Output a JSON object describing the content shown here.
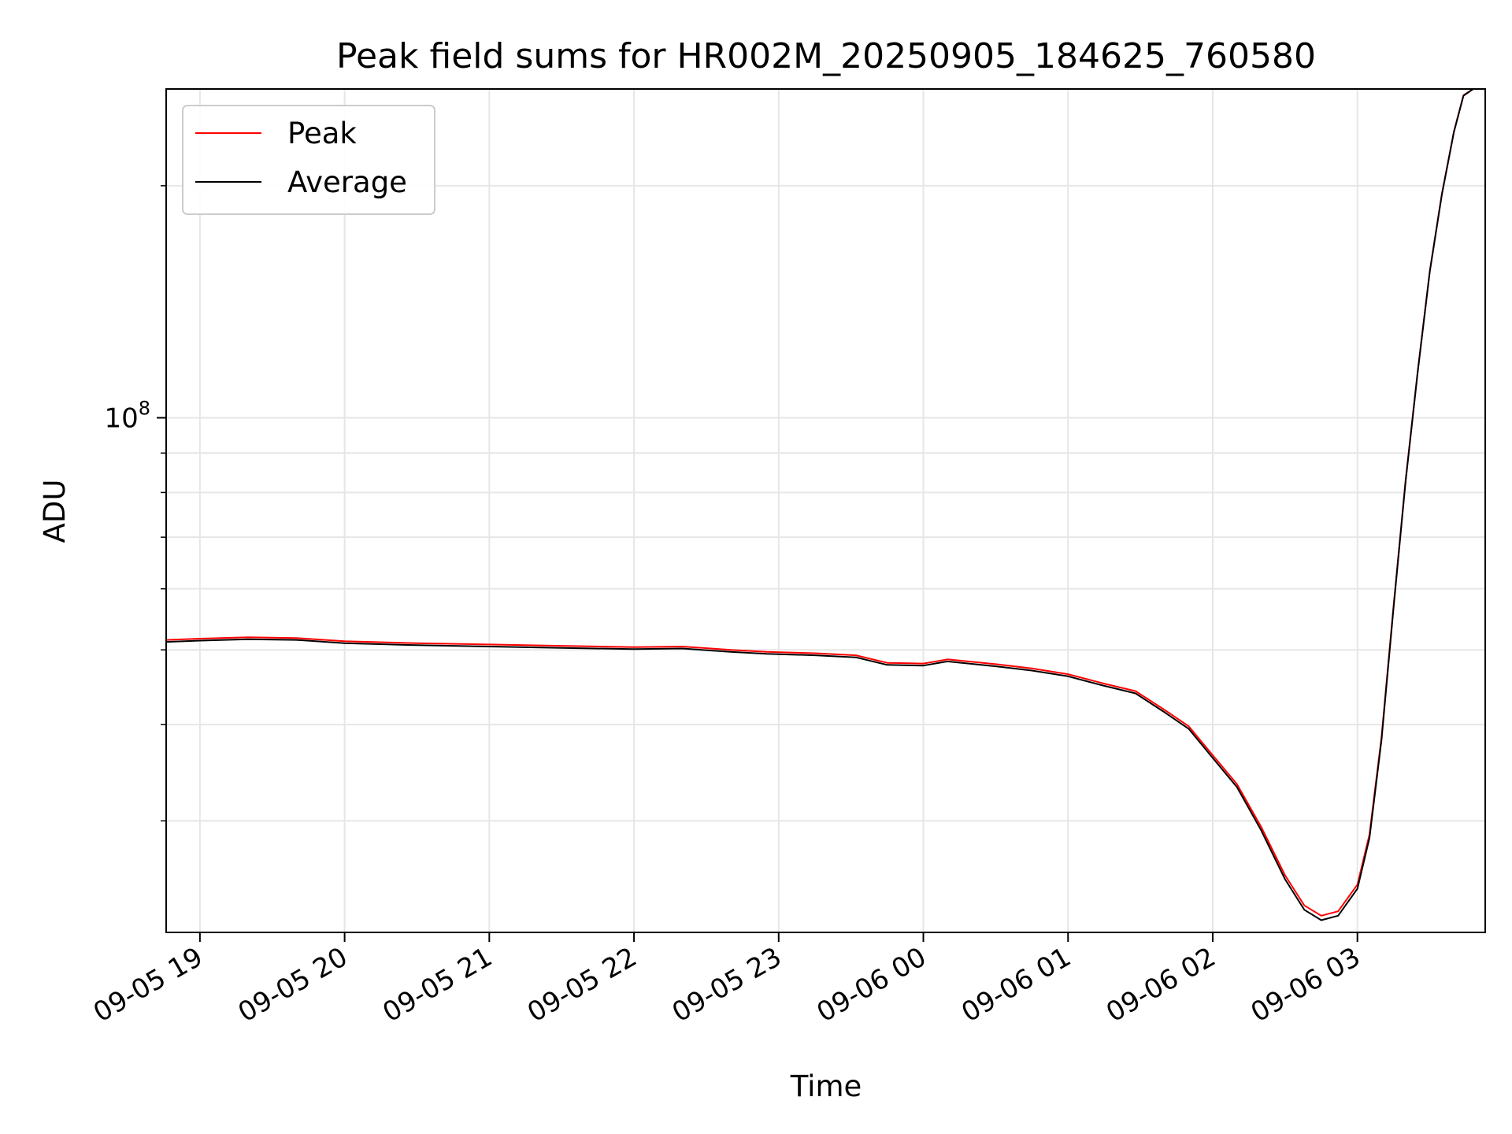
{
  "chart_data": {
    "type": "line",
    "title": "Peak field sums for HR002M_20250905_184625_760580",
    "xlabel": "Time",
    "ylabel": "ADU",
    "yscale": "log",
    "grid": true,
    "legend_position": "top-left",
    "xlim": [
      "2025-09-05 18:46",
      "2025-09-06 03:53"
    ],
    "ylim": [
      21500000,
      267000000
    ],
    "x_ticks": [
      {
        "value": "2025-09-05 19:00",
        "label": "09-05 19"
      },
      {
        "value": "2025-09-05 20:00",
        "label": "09-05 20"
      },
      {
        "value": "2025-09-05 21:00",
        "label": "09-05 21"
      },
      {
        "value": "2025-09-05 22:00",
        "label": "09-05 22"
      },
      {
        "value": "2025-09-05 23:00",
        "label": "09-05 23"
      },
      {
        "value": "2025-09-06 00:00",
        "label": "09-06 00"
      },
      {
        "value": "2025-09-06 01:00",
        "label": "09-06 01"
      },
      {
        "value": "2025-09-06 02:00",
        "label": "09-06 02"
      },
      {
        "value": "2025-09-06 03:00",
        "label": "09-06 03"
      }
    ],
    "y_major_ticks": [
      {
        "value": 100000000,
        "base": "10",
        "exponent": "8"
      }
    ],
    "y_minor_ticks": [
      30000000,
      40000000,
      50000000,
      60000000,
      70000000,
      80000000,
      90000000,
      200000000
    ],
    "x": [
      "2025-09-05 18:46",
      "2025-09-05 19:00",
      "2025-09-05 19:20",
      "2025-09-05 19:40",
      "2025-09-05 20:00",
      "2025-09-05 20:30",
      "2025-09-05 21:00",
      "2025-09-05 21:30",
      "2025-09-05 22:00",
      "2025-09-05 22:20",
      "2025-09-05 22:40",
      "2025-09-05 22:55",
      "2025-09-05 23:15",
      "2025-09-05 23:32",
      "2025-09-05 23:45",
      "2025-09-06 00:00",
      "2025-09-06 00:10",
      "2025-09-06 00:30",
      "2025-09-06 00:45",
      "2025-09-06 01:00",
      "2025-09-06 01:15",
      "2025-09-06 01:28",
      "2025-09-06 01:40",
      "2025-09-06 01:50",
      "2025-09-06 02:00",
      "2025-09-06 02:10",
      "2025-09-06 02:20",
      "2025-09-06 02:30",
      "2025-09-06 02:38",
      "2025-09-06 02:45",
      "2025-09-06 02:52",
      "2025-09-06 03:00",
      "2025-09-06 03:05",
      "2025-09-06 03:10",
      "2025-09-06 03:15",
      "2025-09-06 03:20",
      "2025-09-06 03:25",
      "2025-09-06 03:30",
      "2025-09-06 03:35",
      "2025-09-06 03:40",
      "2025-09-06 03:44",
      "2025-09-06 03:48",
      "2025-09-06 03:53"
    ],
    "series": [
      {
        "name": "Peak",
        "color": "#ff0000",
        "values": [
          51500000,
          51700000,
          51900000,
          51800000,
          51300000,
          51000000,
          50800000,
          50600000,
          50400000,
          50500000,
          50000000,
          49700000,
          49500000,
          49200000,
          48100000,
          48000000,
          48600000,
          47900000,
          47300000,
          46500000,
          45200000,
          44200000,
          41800000,
          39800000,
          36500000,
          33500000,
          29500000,
          25500000,
          23300000,
          22600000,
          22900000,
          24800000,
          28800000,
          38500000,
          57000000,
          83000000,
          115000000,
          155000000,
          195000000,
          235000000,
          262000000,
          267000000,
          267000000
        ]
      },
      {
        "name": "Average",
        "color": "#000000",
        "values": [
          51200000,
          51400000,
          51600000,
          51500000,
          51000000,
          50700000,
          50500000,
          50300000,
          50100000,
          50200000,
          49700000,
          49400000,
          49200000,
          48900000,
          47800000,
          47700000,
          48300000,
          47600000,
          47000000,
          46200000,
          44900000,
          43900000,
          41500000,
          39500000,
          36200000,
          33200000,
          29200000,
          25200000,
          23000000,
          22300000,
          22600000,
          24500000,
          28500000,
          38200000,
          56700000,
          82700000,
          114700000,
          154700000,
          194700000,
          234700000,
          261700000,
          267000000,
          267000000
        ]
      }
    ]
  }
}
